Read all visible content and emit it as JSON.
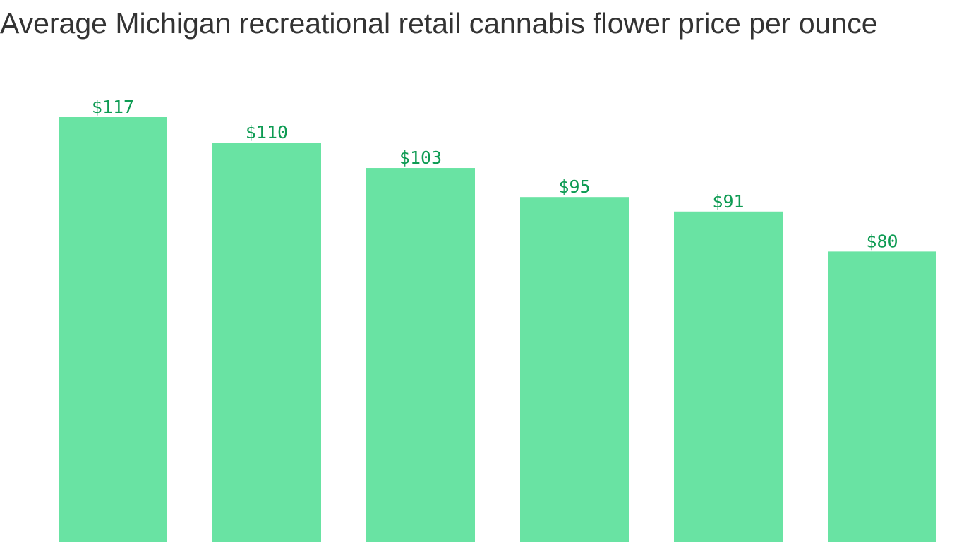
{
  "colors": {
    "bar": "#69e3a3",
    "label": "#0e9b53",
    "title": "#333333"
  },
  "chart_data": {
    "type": "bar",
    "title": "Average Michigan recreational retail cannabis flower price per ounce",
    "xlabel": "",
    "ylabel": "",
    "categories": [
      "",
      "",
      "",
      "",
      "",
      ""
    ],
    "values": [
      117,
      110,
      103,
      95,
      91,
      80
    ],
    "value_labels": [
      "$117",
      "$110",
      "$103",
      "$95",
      "$91",
      "$80"
    ],
    "ylim": [
      0,
      117
    ],
    "grid": false,
    "legend": "none"
  }
}
